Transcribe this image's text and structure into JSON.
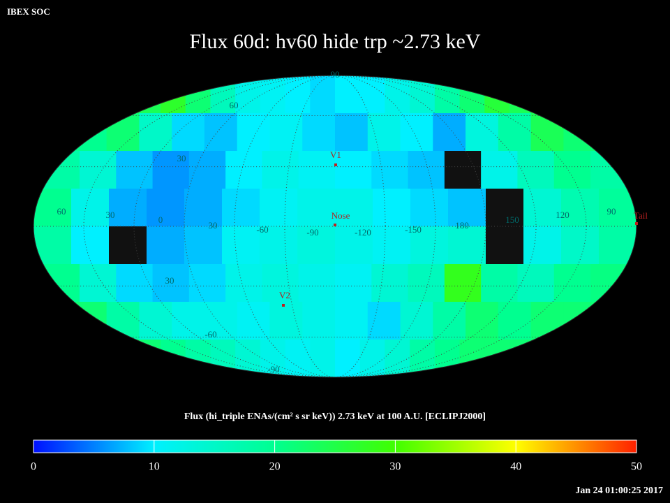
{
  "header": {
    "label": "IBEX SOC"
  },
  "title": "Flux   60d: hv60 hide trp ~2.73 keV",
  "map": {
    "rows": [
      [
        24,
        27,
        22,
        16,
        12,
        11,
        10,
        9,
        10,
        10,
        12,
        14,
        18,
        22,
        26,
        24
      ],
      [
        20,
        22,
        15,
        9,
        8,
        10,
        11,
        9,
        8,
        12,
        10,
        7,
        13,
        18,
        24,
        22
      ],
      [
        18,
        14,
        8,
        6,
        7,
        10,
        12,
        11,
        10,
        9,
        8,
        null,
        12,
        16,
        20,
        18
      ],
      [
        20,
        12,
        7,
        6,
        7,
        9,
        11,
        12,
        12,
        10,
        9,
        8,
        null,
        14,
        17,
        19
      ],
      [
        18,
        10,
        null,
        7,
        8,
        11,
        12,
        13,
        12,
        11,
        13,
        14,
        null,
        12,
        15,
        18
      ],
      [
        20,
        14,
        9,
        8,
        9,
        12,
        13,
        12,
        11,
        14,
        16,
        28,
        18,
        16,
        20,
        21
      ],
      [
        22,
        18,
        14,
        12,
        12,
        11,
        13,
        12,
        11,
        9,
        14,
        18,
        22,
        20,
        22,
        22
      ],
      [
        22,
        20,
        18,
        16,
        14,
        12,
        11,
        12,
        10,
        12,
        14,
        18,
        20,
        22,
        22,
        22
      ]
    ],
    "grid_labels": [
      "90",
      "60",
      "30",
      "60",
      "30",
      "0",
      "30",
      "-60",
      "-90",
      "-120",
      "-150",
      "180",
      "150",
      "120",
      "90",
      "30",
      "-60",
      "-90"
    ],
    "markers": [
      "V1",
      "Nose",
      "Tail",
      "V2"
    ]
  },
  "colorbar": {
    "label": "Flux (hi_triple ENAs/(cm² s sr keV))  2.73 keV at 100 A.U. [ECLIPJ2000]",
    "range": [
      0,
      50
    ],
    "ticks": [
      0,
      10,
      20,
      30,
      40,
      50
    ],
    "colors": [
      "#0010ff",
      "#00f0ff",
      "#00ff90",
      "#40ff00",
      "#ffff00",
      "#ff2000"
    ]
  },
  "timestamp": "Jan 24 01:00:25 2017"
}
